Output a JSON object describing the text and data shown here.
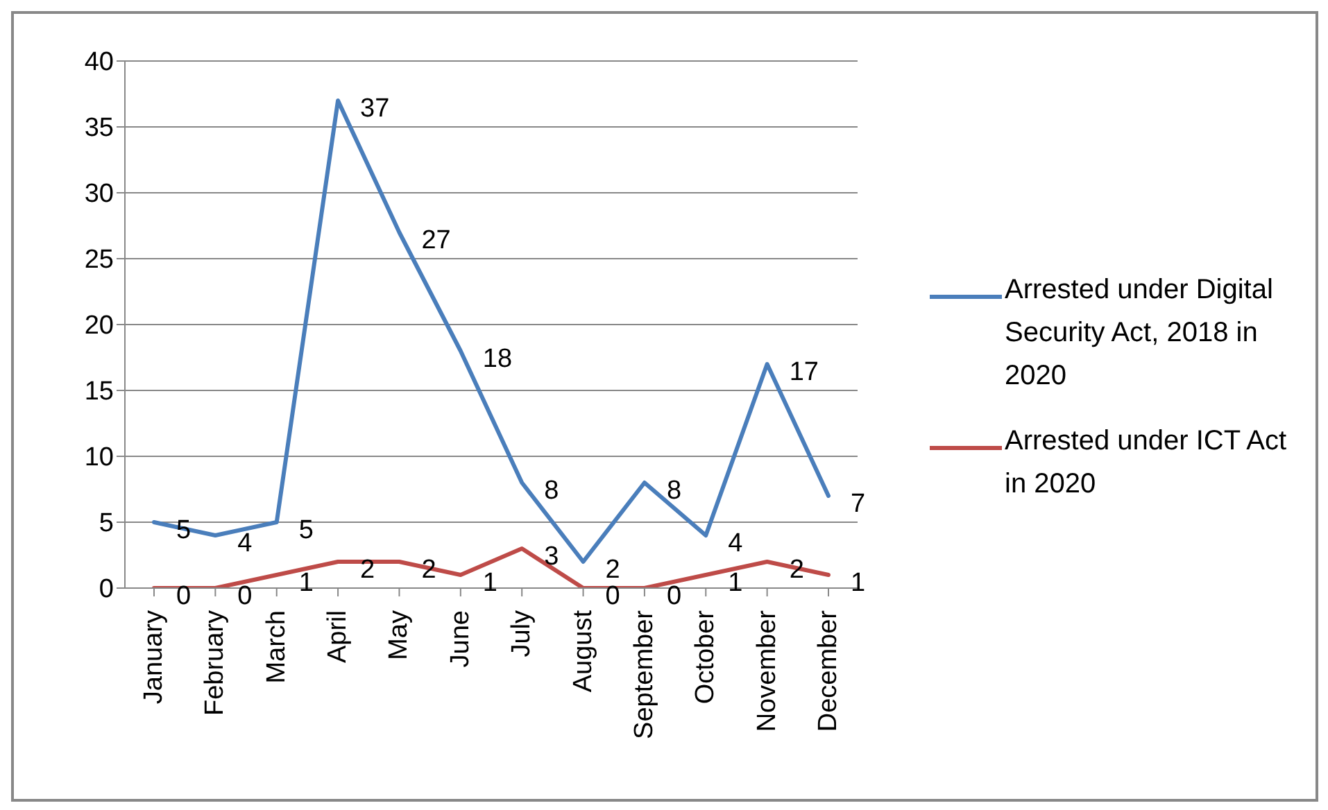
{
  "chart_data": {
    "type": "line",
    "categories": [
      "January",
      "February",
      "March",
      "April",
      "May",
      "June",
      "July",
      "August",
      "September",
      "October",
      "November",
      "December"
    ],
    "series": [
      {
        "name": "Arrested under Digital Security Act, 2018 in 2020",
        "color": "#4a7ebb",
        "values": [
          5,
          4,
          5,
          37,
          27,
          18,
          8,
          2,
          8,
          4,
          17,
          7
        ]
      },
      {
        "name": "Arrested under ICT Act in 2020",
        "color": "#be4b48",
        "values": [
          0,
          0,
          1,
          2,
          2,
          1,
          3,
          0,
          0,
          1,
          2,
          1
        ]
      }
    ],
    "ylim": [
      0,
      40
    ],
    "yticks": [
      0,
      5,
      10,
      15,
      20,
      25,
      30,
      35,
      40
    ],
    "grid": "y",
    "legend": "right",
    "marker": "none",
    "line_style": "solid",
    "data_labels": true
  }
}
